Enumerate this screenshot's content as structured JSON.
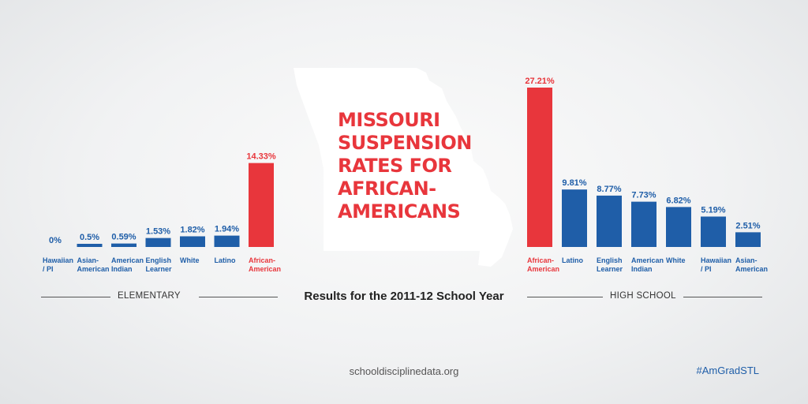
{
  "title_lines": [
    "MISSOURI",
    "SUSPENSION",
    "RATES FOR",
    "AFRICAN-",
    "AMERICANS"
  ],
  "subtitle": "Results for the 2011-12 School Year",
  "elementary_label": "ELEMENTARY",
  "high_school_label": "HIGH SCHOOL",
  "source": "schooldisciplinedata.org",
  "hashtag": "#AmGradSTL",
  "colors": {
    "highlight": "#e8363c",
    "bar": "#1f5ea8",
    "map": "#ffffff"
  },
  "chart_data": [
    {
      "type": "bar",
      "group": "ELEMENTARY",
      "categories": [
        "Hawaiian / PI",
        "Asian-American",
        "American Indian",
        "English Learner",
        "White",
        "Latino",
        "African-American"
      ],
      "values": [
        0,
        0.5,
        0.59,
        1.53,
        1.82,
        1.94,
        14.33
      ],
      "labels": [
        "0%",
        "0.5%",
        "0.59%",
        "1.53%",
        "1.82%",
        "1.94%",
        "14.33%"
      ],
      "cat_lines": [
        [
          "Hawaiian",
          "/ PI"
        ],
        [
          "Asian-",
          "American"
        ],
        [
          "American",
          "Indian"
        ],
        [
          "English",
          "Learner"
        ],
        [
          "White"
        ],
        [
          "Latino"
        ],
        [
          "African-",
          "American"
        ]
      ],
      "highlight": "African-American",
      "unit": "%"
    },
    {
      "type": "bar",
      "group": "HIGH SCHOOL",
      "categories": [
        "African-American",
        "Latino",
        "English Learner",
        "American Indian",
        "White",
        "Hawaiian / PI",
        "Asian-American"
      ],
      "values": [
        27.21,
        9.81,
        8.77,
        7.73,
        6.82,
        5.19,
        2.51
      ],
      "labels": [
        "27.21%",
        "9.81%",
        "8.77%",
        "7.73%",
        "6.82%",
        "5.19%",
        "2.51%"
      ],
      "cat_lines": [
        [
          "African-",
          "American"
        ],
        [
          "Latino"
        ],
        [
          "English",
          "Learner"
        ],
        [
          "American",
          "Indian"
        ],
        [
          "White"
        ],
        [
          "Hawaiian",
          "/ PI"
        ],
        [
          "Asian-",
          "American"
        ]
      ],
      "highlight": "African-American",
      "unit": "%"
    }
  ]
}
